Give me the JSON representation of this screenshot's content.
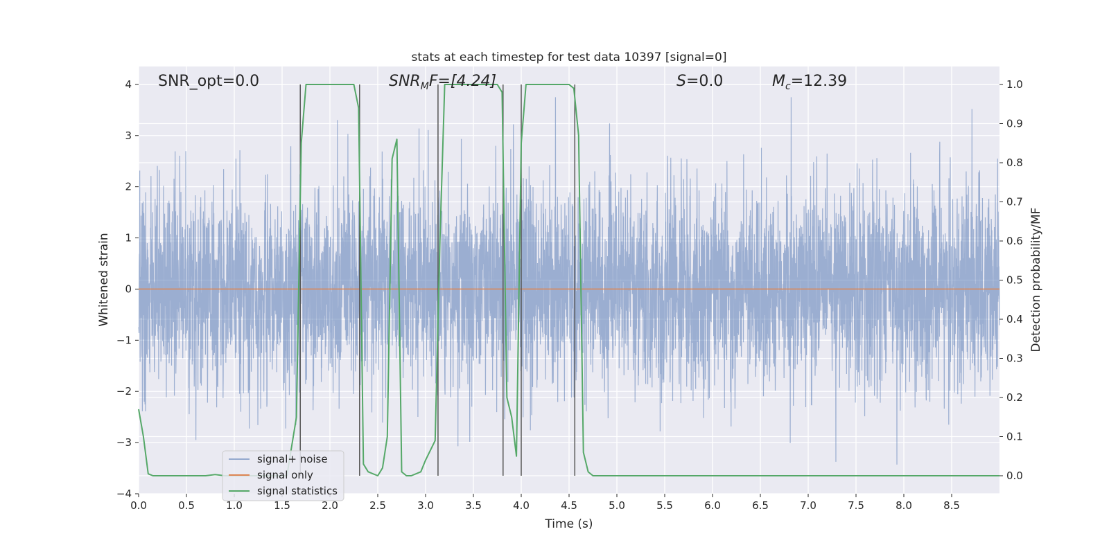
{
  "chart_data": {
    "type": "line",
    "title": "stats at each timestep for test data 10397 [signal=0]",
    "xlabel": "Time (s)",
    "ylabel": "Whitened strain",
    "y2label": "Detection probability/MF",
    "xlim": [
      0,
      9.0
    ],
    "ylim": [
      -4,
      4.35
    ],
    "y2lim": [
      -0.046,
      1.046
    ],
    "x_ticks": [
      0.0,
      0.5,
      1.0,
      1.5,
      2.0,
      2.5,
      3.0,
      3.5,
      4.0,
      4.5,
      5.0,
      5.5,
      6.0,
      6.5,
      7.0,
      7.5,
      8.0,
      8.5
    ],
    "x_tick_labels": [
      "0.0",
      "0.5",
      "1.0",
      "1.5",
      "2.0",
      "2.5",
      "3.0",
      "3.5",
      "4.0",
      "4.5",
      "5.0",
      "5.5",
      "6.0",
      "6.5",
      "7.0",
      "7.5",
      "8.0",
      "8.5"
    ],
    "y_ticks": [
      -4,
      -3,
      -2,
      -1,
      0,
      1,
      2,
      3,
      4
    ],
    "y_tick_labels": [
      "−4",
      "−3",
      "−2",
      "−1",
      "0",
      "1",
      "2",
      "3",
      "4"
    ],
    "y2_ticks": [
      0.0,
      0.1,
      0.2,
      0.3,
      0.4,
      0.5,
      0.6,
      0.7,
      0.8,
      0.9,
      1.0
    ],
    "y2_tick_labels": [
      "0.0",
      "0.1",
      "0.2",
      "0.3",
      "0.4",
      "0.5",
      "0.6",
      "0.7",
      "0.8",
      "0.9",
      "1.0"
    ],
    "grid": true,
    "legend_position": "lower-left",
    "annotations": {
      "snr_opt": "SNR_opt=0.0",
      "snr_mf_base": "SNR",
      "snr_mf_sub": "M",
      "snr_mf_rest": "F=[4.24]",
      "s_var": "S",
      "s_rest": "=0.0",
      "mc_base": "M",
      "mc_sub": "c",
      "mc_rest": "=12.39"
    },
    "series": [
      {
        "name": "signal+ noise",
        "color": "#4c72b0",
        "axis": "left",
        "description_range": [
          -3.7,
          3.75
        ]
      },
      {
        "name": "signal only",
        "color": "#dd8452",
        "axis": "left",
        "constant": 0
      },
      {
        "name": "signal statistics",
        "color": "#55a868",
        "axis": "right",
        "x": [
          0.0,
          0.05,
          0.1,
          0.15,
          0.2,
          0.3,
          0.5,
          0.7,
          0.8,
          0.9,
          1.0,
          1.2,
          1.4,
          1.55,
          1.65,
          1.7,
          1.75,
          2.0,
          2.25,
          2.3,
          2.35,
          2.4,
          2.5,
          2.55,
          2.6,
          2.65,
          2.7,
          2.75,
          2.8,
          2.85,
          2.95,
          3.0,
          3.1,
          3.15,
          3.2,
          3.3,
          3.5,
          3.75,
          3.8,
          3.85,
          3.9,
          3.95,
          4.0,
          4.05,
          4.1,
          4.3,
          4.5,
          4.55,
          4.6,
          4.65,
          4.7,
          4.75,
          5.0,
          6.0,
          7.0,
          8.0,
          9.0
        ],
        "y": [
          0.17,
          0.1,
          0.005,
          0.0,
          0.0,
          0.0,
          0.0,
          0.0,
          0.003,
          0.0,
          0.0,
          0.0,
          0.0,
          0.0,
          0.15,
          0.85,
          1.0,
          1.0,
          1.0,
          0.94,
          0.03,
          0.01,
          0.0,
          0.02,
          0.1,
          0.81,
          0.86,
          0.01,
          0.0,
          0.0,
          0.01,
          0.04,
          0.09,
          0.6,
          1.0,
          1.0,
          1.0,
          1.0,
          0.98,
          0.2,
          0.15,
          0.05,
          0.85,
          1.0,
          1.0,
          1.0,
          1.0,
          0.99,
          0.87,
          0.06,
          0.01,
          0.0,
          0.0,
          0.0,
          0.0,
          0.0,
          0.0
        ]
      }
    ],
    "vlines_x": [
      1.69,
      2.31,
      3.13,
      3.81,
      4.0,
      4.56
    ],
    "vline_color": "#555555"
  }
}
